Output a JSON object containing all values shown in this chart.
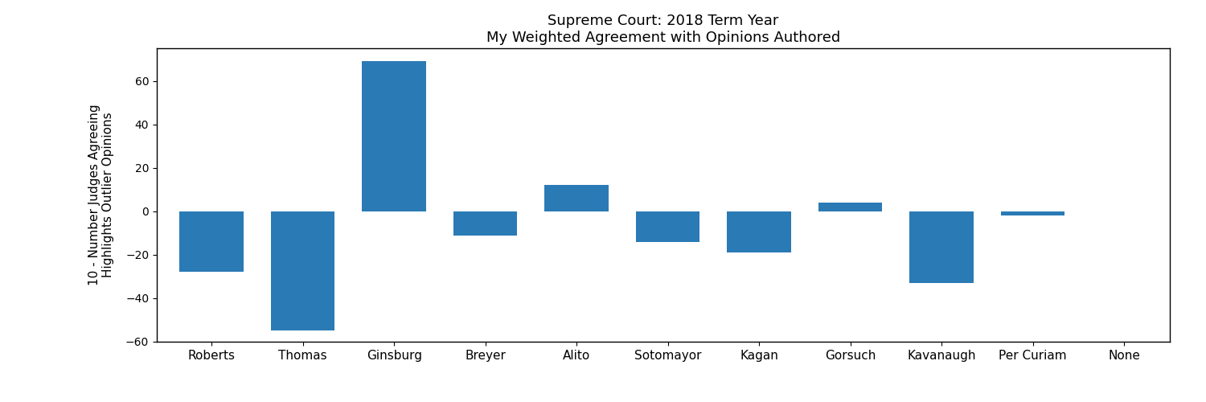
{
  "title_line1": "Supreme Court: 2018 Term Year",
  "title_line2": "My Weighted Agreement with Opinions Authored",
  "categories": [
    "Roberts",
    "Thomas",
    "Ginsburg",
    "Breyer",
    "Alito",
    "Sotomayor",
    "Kagan",
    "Gorsuch",
    "Kavanaugh",
    "Per Curiam",
    "None"
  ],
  "values": [
    -28,
    -55,
    69,
    -11,
    12,
    -14,
    -19,
    4,
    -33,
    -2,
    0
  ],
  "bar_color": "#2a7ab5",
  "ylabel": "10 - Number Judges Agreeing\nHighlights Outlier Opinions",
  "ylim": [
    -60,
    75
  ],
  "yticks": [
    -60,
    -40,
    -20,
    0,
    20,
    40,
    60
  ],
  "background_color": "#ffffff",
  "title_fontsize": 13,
  "label_fontsize": 11,
  "bar_width": 0.7
}
